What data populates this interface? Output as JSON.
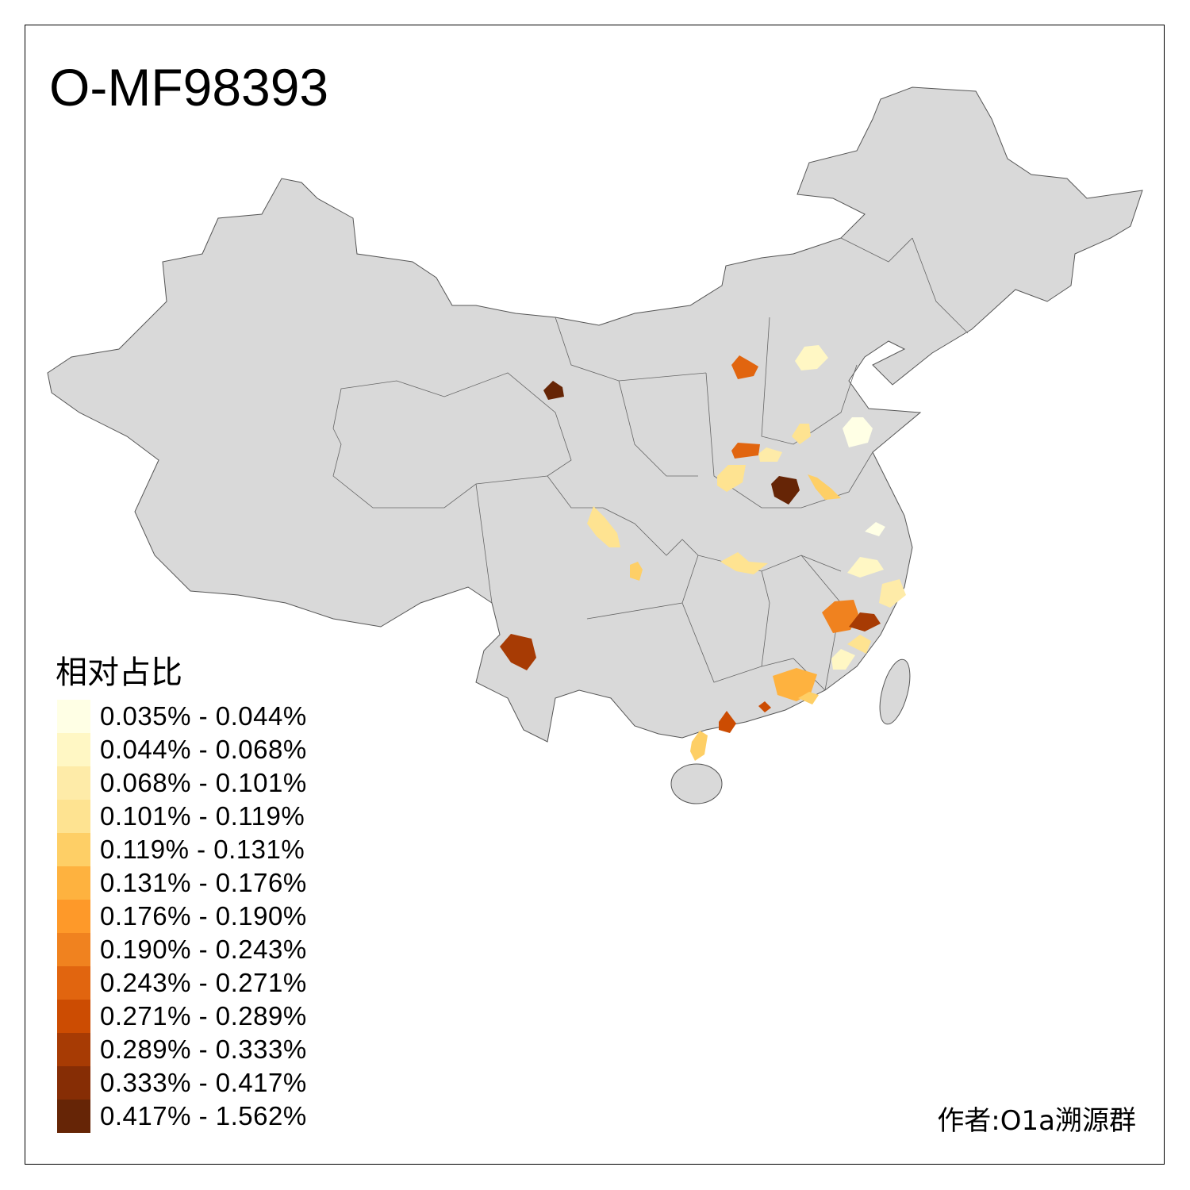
{
  "title": "O-MF98393",
  "legend": {
    "title": "相对占比",
    "items": [
      {
        "label": "0.035% - 0.044%",
        "color": "#ffffe5"
      },
      {
        "label": "0.044% - 0.068%",
        "color": "#fff7c4"
      },
      {
        "label": "0.068% - 0.101%",
        "color": "#feeba8"
      },
      {
        "label": "0.101% - 0.119%",
        "color": "#fee391"
      },
      {
        "label": "0.119% - 0.131%",
        "color": "#fecf66"
      },
      {
        "label": "0.131% - 0.176%",
        "color": "#feb23f"
      },
      {
        "label": "0.176% - 0.190%",
        "color": "#fe9929"
      },
      {
        "label": "0.190% - 0.243%",
        "color": "#f0821f"
      },
      {
        "label": "0.243% - 0.271%",
        "color": "#e1650f"
      },
      {
        "label": "0.271% - 0.289%",
        "color": "#cc4c02"
      },
      {
        "label": "0.289% - 0.333%",
        "color": "#a73b04"
      },
      {
        "label": "0.333% - 0.417%",
        "color": "#862d05"
      },
      {
        "label": "0.417% - 1.562%",
        "color": "#662506"
      }
    ]
  },
  "author": "作者:O1a溯源群",
  "colors": {
    "land": "#d9d9d9",
    "border": "#555555",
    "no_data": "#d9d9d9"
  }
}
